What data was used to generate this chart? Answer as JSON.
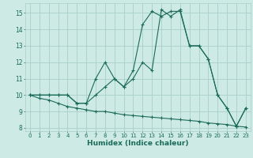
{
  "xlabel": "Humidex (Indice chaleur)",
  "xlim": [
    -0.5,
    23.5
  ],
  "ylim": [
    7.8,
    15.6
  ],
  "yticks": [
    8,
    9,
    10,
    11,
    12,
    13,
    14,
    15
  ],
  "xticks": [
    0,
    1,
    2,
    3,
    4,
    5,
    6,
    7,
    8,
    9,
    10,
    11,
    12,
    13,
    14,
    15,
    16,
    17,
    18,
    19,
    20,
    21,
    22,
    23
  ],
  "bg_color": "#ceeae4",
  "grid_color": "#a8cec8",
  "line_color": "#1a6b5a",
  "line1_y": [
    10.0,
    10.0,
    10.0,
    10.0,
    10.0,
    9.5,
    9.5,
    11.0,
    12.0,
    11.0,
    10.5,
    11.5,
    14.3,
    15.1,
    14.8,
    15.1,
    15.1,
    13.0,
    13.0,
    12.2,
    10.0,
    9.2,
    8.1,
    9.2
  ],
  "line2_y": [
    10.0,
    10.0,
    10.0,
    10.0,
    10.0,
    9.5,
    9.5,
    10.0,
    10.5,
    11.0,
    10.5,
    11.0,
    12.0,
    11.5,
    15.2,
    14.8,
    15.2,
    13.0,
    13.0,
    12.2,
    10.0,
    9.2,
    8.1,
    9.2
  ],
  "line3_y": [
    10.0,
    9.8,
    9.7,
    9.5,
    9.3,
    9.2,
    9.1,
    9.0,
    9.0,
    8.9,
    8.8,
    8.75,
    8.7,
    8.65,
    8.6,
    8.55,
    8.5,
    8.45,
    8.4,
    8.3,
    8.25,
    8.2,
    8.1,
    8.05
  ]
}
